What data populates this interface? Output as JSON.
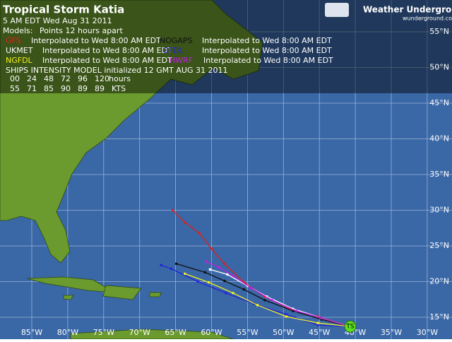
{
  "header": {
    "title": "Tropical Storm Katia",
    "time": "5 AM EDT Wed Aug 31 2011",
    "models_label": "Models:",
    "models_note": "Points 12 hours apart"
  },
  "models": [
    {
      "name": "GFS",
      "color": "#e0201c",
      "note": "Interpolated to Wed 8:00 AM EDT",
      "points": [
        [
          -40.7,
          13.7
        ],
        [
          -45.2,
          15.1
        ],
        [
          -49.1,
          16.2
        ],
        [
          -52.6,
          17.9
        ],
        [
          -55.5,
          19.9
        ],
        [
          -58.2,
          22.5
        ],
        [
          -60.0,
          24.6
        ],
        [
          -61.7,
          26.8
        ],
        [
          -63.7,
          28.3
        ],
        [
          -65.4,
          30.0
        ]
      ]
    },
    {
      "name": "NOGAPS",
      "color": "#111111",
      "note": "Interpolated to Wed 8:00 AM EDT",
      "points": [
        [
          -40.7,
          13.7
        ],
        [
          -44.7,
          14.7
        ],
        [
          -48.7,
          15.9
        ],
        [
          -52.6,
          17.4
        ],
        [
          -55.5,
          18.9
        ],
        [
          -58.2,
          20.1
        ],
        [
          -60.9,
          21.3
        ],
        [
          -64.9,
          22.5
        ]
      ]
    },
    {
      "name": "UKMET",
      "color": "#ffffff",
      "note": "Interpolated to Wed 8:00 AM EDT",
      "points": [
        [
          -40.7,
          13.7
        ],
        [
          -44.7,
          14.9
        ],
        [
          -48.7,
          16.2
        ],
        [
          -52.3,
          17.9
        ],
        [
          -55.0,
          19.4
        ],
        [
          -57.8,
          21.0
        ],
        [
          -60.2,
          21.7
        ]
      ]
    },
    {
      "name": "GFDL",
      "color": "#2222dd",
      "note": "Interpolated to Wed 8:00 AM EDT",
      "points": [
        [
          -40.7,
          13.7
        ],
        [
          -45.2,
          13.9
        ],
        [
          -49.6,
          15.4
        ],
        [
          -54.1,
          16.9
        ],
        [
          -58.0,
          18.4
        ],
        [
          -61.9,
          20.0
        ],
        [
          -65.6,
          21.8
        ],
        [
          -67.0,
          22.3
        ]
      ]
    },
    {
      "name": "NGFDL",
      "color": "#f0f020",
      "note": "Interpolated to Wed 8:00 AM EDT",
      "points": [
        [
          -40.7,
          13.7
        ],
        [
          -45.2,
          14.2
        ],
        [
          -49.6,
          15.1
        ],
        [
          -53.6,
          16.7
        ],
        [
          -57.0,
          18.4
        ],
        [
          -60.4,
          19.9
        ],
        [
          -63.7,
          21.1
        ]
      ]
    },
    {
      "name": "HWRF",
      "color": "#c020e0",
      "note": "Interpolated to Wed 8:00 AM EDT",
      "points": [
        [
          -40.7,
          13.7
        ],
        [
          -44.7,
          14.9
        ],
        [
          -48.2,
          15.9
        ],
        [
          -51.6,
          17.4
        ],
        [
          -54.5,
          19.1
        ],
        [
          -57.0,
          20.8
        ],
        [
          -59.0,
          22.0
        ],
        [
          -60.7,
          22.8
        ]
      ]
    }
  ],
  "ships": {
    "title": "SHIPS INTENSITY MODEL initialized 12 GMT AUG 31 2011",
    "hours": [
      "00",
      "24",
      "48",
      "72",
      "96",
      "120"
    ],
    "hours_unit": "hours",
    "speeds": [
      55,
      71,
      85,
      90,
      89,
      89
    ],
    "speed_unit": "KTS"
  },
  "storm": {
    "label": "TS",
    "lon": -40.7,
    "lat": 13.7
  },
  "lon_ticks": [
    {
      "value": -85,
      "label": "85°W"
    },
    {
      "value": -80,
      "label": "80°W"
    },
    {
      "value": -75,
      "label": "75°W"
    },
    {
      "value": -70,
      "label": "70°W"
    },
    {
      "value": -65,
      "label": "65°W"
    },
    {
      "value": -60,
      "label": "60°W"
    },
    {
      "value": -55,
      "label": "55°W"
    },
    {
      "value": -50,
      "label": "50°W"
    },
    {
      "value": -45,
      "label": "45°W"
    },
    {
      "value": -40,
      "label": "40°W"
    },
    {
      "value": -35,
      "label": "35°W"
    },
    {
      "value": -30,
      "label": "30°W"
    }
  ],
  "lat_ticks": [
    {
      "value": 15,
      "label": "15°N"
    },
    {
      "value": 20,
      "label": "20°N"
    },
    {
      "value": 25,
      "label": "25°N"
    },
    {
      "value": 30,
      "label": "30°N"
    },
    {
      "value": 35,
      "label": "35°N"
    },
    {
      "value": 40,
      "label": "40°N"
    },
    {
      "value": 45,
      "label": "45°N"
    },
    {
      "value": 50,
      "label": "50°N"
    },
    {
      "value": 55,
      "label": "55°N"
    }
  ],
  "logo": {
    "name": "Weather Underground",
    "site": "wunderground.com"
  }
}
